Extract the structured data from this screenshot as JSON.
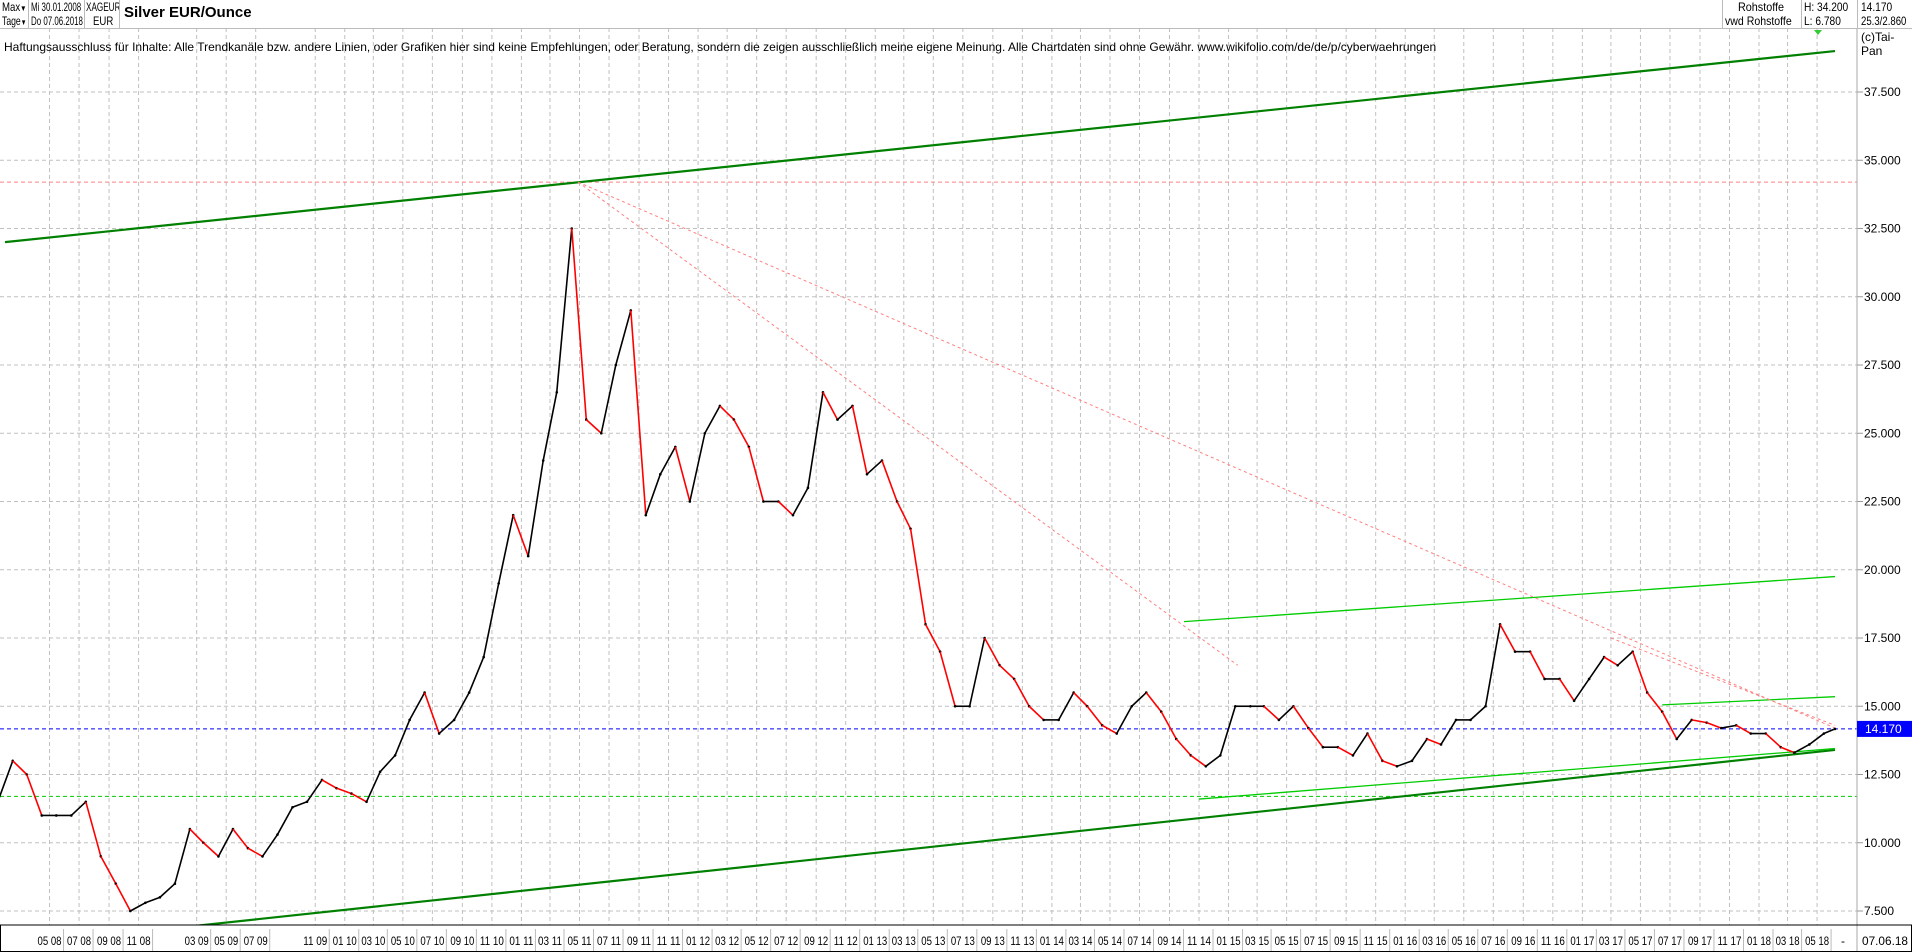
{
  "header": {
    "range_select": "Max",
    "interval_select": "Tage",
    "date_from": "Mi 30.01.2008",
    "date_to": "Do 07.06.2018",
    "symbol": "XAGEUR",
    "currency": "EUR",
    "title": "Silver EUR/Ounce",
    "category": "Rohstoffe",
    "source": "vwd Rohstoffe",
    "high": "H: 34.200",
    "low": "L: 6.780",
    "last": "14.170",
    "info": "25.3/2.860"
  },
  "disclaimer": "Haftungsausschluss für Inhalte: Alle Trendkanäle bzw. andere Linien, oder Grafiken hier sind keine Empfehlungen, oder Beratung, sondern die zeigen ausschließlich meine eigene Meinung. Alle Chartdaten sind ohne Gewähr.  www.wikifolio.com/de/de/p/cyberwaehrungen",
  "copyright": "(c)Tai-Pan",
  "colors": {
    "up": "#000000",
    "down": "#ff0000",
    "trend_major": "#008000",
    "trend_minor": "#00cc00",
    "resistance": "#ff8080",
    "last_price": "#0000ff"
  },
  "chart_data": {
    "type": "line",
    "title": "Silver EUR/Ounce",
    "x_start": "2008-01-30",
    "x_end": "2018-06-07",
    "ylim": [
      6.0,
      39.5
    ],
    "grid": true,
    "y_ticks": [
      "7.500",
      "10.000",
      "12.500",
      "15.000",
      "17.500",
      "20.000",
      "22.500",
      "25.000",
      "27.500",
      "30.000",
      "32.500",
      "35.000",
      "37.500"
    ],
    "x_ticks": [
      "05 08",
      "07 08",
      "09 08",
      "11 08",
      "03 09",
      "05 09",
      "07 09",
      "11 09",
      "01 10",
      "03 10",
      "05 10",
      "07 10",
      "09 10",
      "11 10",
      "01 11",
      "03 11",
      "05 11",
      "07 11",
      "09 11",
      "11 11",
      "01 12",
      "03 12",
      "05 12",
      "07 12",
      "09 12",
      "11 12",
      "01 13",
      "03 13",
      "05 13",
      "07 13",
      "09 13",
      "11 13",
      "01 14",
      "03 14",
      "05 14",
      "07 14",
      "09 14",
      "11 14",
      "01 15",
      "03 15",
      "05 15",
      "07 15",
      "09 15",
      "11 15",
      "01 16",
      "03 16",
      "05 16",
      "07 16",
      "09 16",
      "11 16",
      "01 17",
      "03 17",
      "05 17",
      "07 17",
      "09 17",
      "11 17",
      "01 18",
      "03 18",
      "05 18"
    ],
    "x_end_label": "07.06.18",
    "x_end_dash": "-",
    "last_price": 14.17,
    "last_label": "14.170",
    "series": [
      {
        "start": "2008-01",
        "monthly_close": [
          11.5,
          13.0,
          12.5,
          11.0,
          11.0,
          11.0,
          11.5,
          9.5,
          8.5,
          7.5,
          7.8,
          8.0,
          8.5,
          10.5,
          10.0,
          9.5,
          10.5,
          9.8,
          9.5,
          10.3,
          11.3,
          11.5,
          12.3,
          12.0,
          11.8,
          11.5,
          12.6,
          13.2,
          14.5,
          15.5,
          14.0,
          14.5,
          15.5,
          16.8,
          19.5,
          22.0,
          20.5,
          24.0,
          26.5,
          32.5,
          25.5,
          25.0,
          27.5,
          29.5,
          22.0,
          23.5,
          24.5,
          22.5,
          25.0,
          26.0,
          25.5,
          24.5,
          22.5,
          22.5,
          22.0,
          23.0,
          26.5,
          25.5,
          26.0,
          23.5,
          24.0,
          22.5,
          21.5,
          18.0,
          17.0,
          15.0,
          15.0,
          17.5,
          16.5,
          16.0,
          15.0,
          14.5,
          14.5,
          15.5,
          15.0,
          14.3,
          14.0,
          15.0,
          15.5,
          14.8,
          13.8,
          13.2,
          12.8,
          13.2,
          15.0,
          15.0,
          15.0,
          14.5,
          15.0,
          14.2,
          13.5,
          13.5,
          13.2,
          14.0,
          13.0,
          12.8,
          13.0,
          13.8,
          13.6,
          14.5,
          14.5,
          15.0,
          18.0,
          17.0,
          17.0,
          16.0,
          16.0,
          15.2,
          16.0,
          16.8,
          16.5,
          17.0,
          15.5,
          14.8,
          13.8,
          14.5,
          14.4,
          14.2,
          14.3,
          14.0,
          14.0,
          13.5,
          13.3,
          13.6,
          14.0,
          14.17
        ],
        "high": 34.2,
        "low": 6.78
      }
    ],
    "trendlines": [
      {
        "kind": "major",
        "from": [
          "2008-01-30",
          32.0
        ],
        "to": [
          "2018-06-07",
          39.0
        ]
      },
      {
        "kind": "major",
        "from": [
          "2008-10-15",
          6.7
        ],
        "to": [
          "2018-06-07",
          13.4
        ]
      },
      {
        "kind": "minor",
        "from": [
          "2014-11-01",
          11.6
        ],
        "to": [
          "2018-06-07",
          13.45
        ]
      },
      {
        "kind": "minor",
        "from": [
          "2014-10-01",
          18.1
        ],
        "to": [
          "2018-06-07",
          19.75
        ]
      },
      {
        "kind": "minor",
        "from": [
          "2017-06-15",
          15.05
        ],
        "to": [
          "2018-06-07",
          15.35
        ]
      },
      {
        "kind": "resistance",
        "from": [
          "2011-04-28",
          34.2
        ],
        "to": [
          "2018-06-07",
          14.2
        ]
      },
      {
        "kind": "resistance",
        "from": [
          "2011-04-28",
          34.2
        ],
        "to": [
          "2015-01-20",
          16.5
        ]
      },
      {
        "kind": "resistance",
        "from": [
          "2017-03-01",
          17.5
        ],
        "to": [
          "2018-06-07",
          14.3
        ]
      }
    ],
    "horizontal_lines": [
      {
        "kind": "resistance",
        "value": 34.2
      },
      {
        "kind": "last_price",
        "value": 14.17
      },
      {
        "kind": "support",
        "value": 11.7
      }
    ]
  }
}
